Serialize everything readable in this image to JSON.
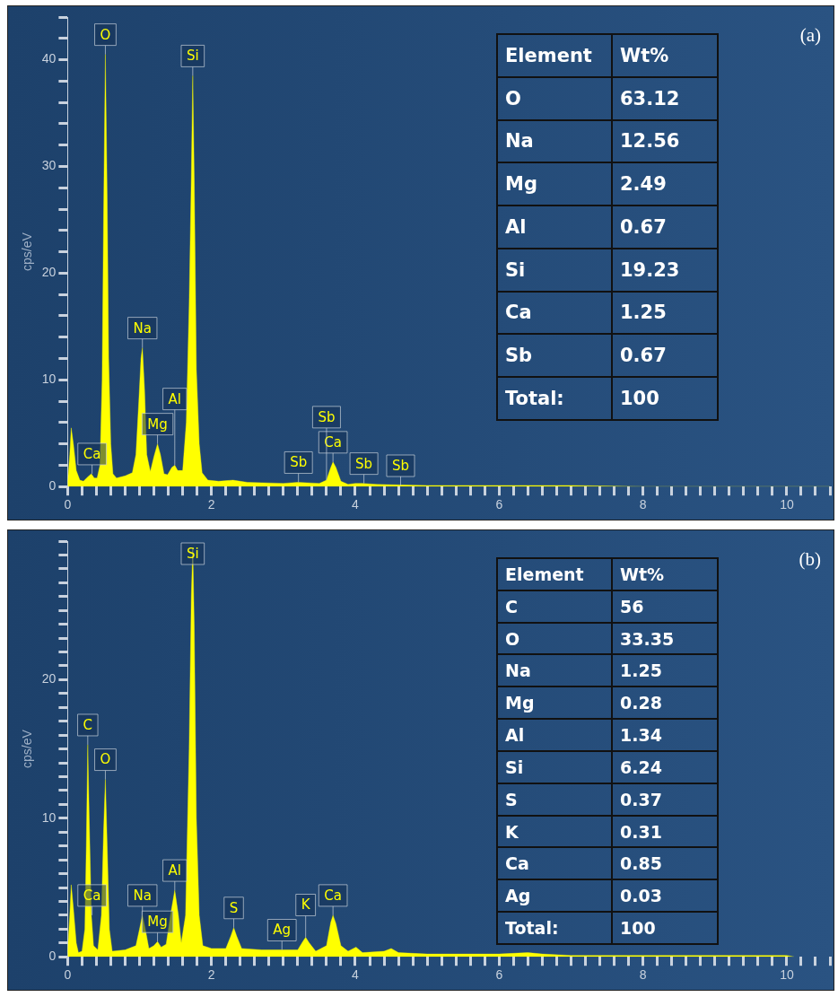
{
  "chart_data": [
    {
      "type": "area",
      "title": "(a)",
      "ylabel": "cps/eV",
      "color": "#ffff00",
      "marker": "none",
      "grid": false,
      "legend": false,
      "x": [
        0,
        0.03,
        0.05,
        0.08,
        0.12,
        0.17,
        0.22,
        0.28,
        0.33,
        0.37,
        0.41,
        0.45,
        0.48,
        0.5,
        0.525,
        0.55,
        0.57,
        0.6,
        0.63,
        0.68,
        0.8,
        0.9,
        0.95,
        0.99,
        1.02,
        1.04,
        1.07,
        1.1,
        1.15,
        1.2,
        1.25,
        1.29,
        1.34,
        1.39,
        1.45,
        1.49,
        1.53,
        1.6,
        1.65,
        1.69,
        1.72,
        1.74,
        1.76,
        1.79,
        1.83,
        1.87,
        1.95,
        2.1,
        2.3,
        2.5,
        3.0,
        3.2,
        3.5,
        3.6,
        3.66,
        3.69,
        3.73,
        3.8,
        3.9,
        4.0,
        4.1,
        4.3,
        5,
        6,
        7,
        8,
        9,
        10,
        10.6
      ],
      "values": [
        0.3,
        3,
        5.5,
        4,
        1.5,
        0.6,
        0.5,
        0.9,
        1.2,
        0.8,
        0.8,
        2,
        10,
        25,
        40.5,
        27,
        12,
        4,
        1.2,
        0.8,
        1,
        1.3,
        3,
        8,
        12,
        13,
        9,
        3,
        1.4,
        2.8,
        4,
        3,
        1.2,
        1.1,
        1.8,
        2,
        1.5,
        1.5,
        6,
        17,
        29,
        38.5,
        29,
        11,
        4,
        1.3,
        0.6,
        0.5,
        0.6,
        0.4,
        0.3,
        0.4,
        0.3,
        0.6,
        1.8,
        2.3,
        1.8,
        0.5,
        0.2,
        0.3,
        0.3,
        0.2,
        0.1,
        0.1,
        0.1,
        0,
        0,
        0,
        0
      ],
      "xlim": [
        0,
        10.6
      ],
      "ylim": [
        0,
        44
      ],
      "xticks": [
        0,
        {
          "value": 0.2,
          "label": null
        },
        {
          "value": 0.4,
          "label": null
        },
        {
          "value": 0.6,
          "label": null
        },
        {
          "value": 0.8,
          "label": null
        },
        {
          "value": 1,
          "label": null
        },
        {
          "value": 1.2,
          "label": null
        },
        {
          "value": 1.4,
          "label": null
        },
        {
          "value": 1.6,
          "label": null
        },
        {
          "value": 1.8,
          "label": null
        },
        2,
        {
          "value": 2.2,
          "label": null
        },
        {
          "value": 2.4,
          "label": null
        },
        {
          "value": 2.6,
          "label": null
        },
        {
          "value": 2.8,
          "label": null
        },
        {
          "value": 3,
          "label": null
        },
        {
          "value": 3.2,
          "label": null
        },
        {
          "value": 3.4,
          "label": null
        },
        {
          "value": 3.6,
          "label": null
        },
        {
          "value": 3.8,
          "label": null
        },
        4,
        {
          "value": 4.2,
          "label": null
        },
        {
          "value": 4.4,
          "label": null
        },
        {
          "value": 4.6,
          "label": null
        },
        {
          "value": 4.8,
          "label": null
        },
        {
          "value": 5,
          "label": null
        },
        {
          "value": 5.2,
          "label": null
        },
        {
          "value": 5.4,
          "label": null
        },
        {
          "value": 5.6,
          "label": null
        },
        {
          "value": 5.8,
          "label": null
        },
        6,
        {
          "value": 6.2,
          "label": null
        },
        {
          "value": 6.4,
          "label": null
        },
        {
          "value": 6.6,
          "label": null
        },
        {
          "value": 6.8,
          "label": null
        },
        {
          "value": 7,
          "label": null
        },
        {
          "value": 7.2,
          "label": null
        },
        {
          "value": 7.4,
          "label": null
        },
        {
          "value": 7.6,
          "label": null
        },
        {
          "value": 7.8,
          "label": null
        },
        8,
        {
          "value": 8.2,
          "label": null
        },
        {
          "value": 8.4,
          "label": null
        },
        {
          "value": 8.6,
          "label": null
        },
        {
          "value": 8.8,
          "label": null
        },
        {
          "value": 9,
          "label": null
        },
        {
          "value": 9.2,
          "label": null
        },
        {
          "value": 9.4,
          "label": null
        },
        {
          "value": 9.6,
          "label": null
        },
        {
          "value": 9.8,
          "label": null
        },
        10,
        {
          "value": 10.2,
          "label": null
        },
        {
          "value": 10.4,
          "label": null
        },
        {
          "value": 10.6,
          "label": null
        }
      ],
      "yticks": [
        0,
        {
          "value": 2,
          "label": null
        },
        {
          "value": 4,
          "label": null
        },
        {
          "value": 6,
          "label": null
        },
        {
          "value": 8,
          "label": null
        },
        10,
        {
          "value": 12,
          "label": null
        },
        {
          "value": 14,
          "label": null
        },
        {
          "value": 16,
          "label": null
        },
        {
          "value": 18,
          "label": null
        },
        20,
        {
          "value": 22,
          "label": null
        },
        {
          "value": 24,
          "label": null
        },
        {
          "value": 26,
          "label": null
        },
        {
          "value": 28,
          "label": null
        },
        30,
        {
          "value": 32,
          "label": null
        },
        {
          "value": 34,
          "label": null
        },
        {
          "value": 36,
          "label": null
        },
        {
          "value": 38,
          "label": null
        },
        40,
        {
          "value": 42,
          "label": null
        },
        {
          "value": 44,
          "label": null
        }
      ],
      "annotations": [
        "Element",
        "Wt%",
        "O",
        "63.12",
        "Na",
        "12.56",
        "Mg",
        "2.49",
        "Al",
        "0.67",
        "Si",
        "19.23",
        "Ca",
        "1.25",
        "Sb",
        "0.67",
        "Total:",
        "100",
        {
          "text": "Ca",
          "x": 0.34,
          "y": 1.2
        },
        {
          "text": "O",
          "x": 0.525,
          "y": 40.5
        },
        {
          "text": "Si",
          "x": 1.74,
          "y": 38.5
        },
        {
          "text": "Na",
          "x": 1.04,
          "y": 13
        },
        {
          "text": "Mg",
          "x": 1.25,
          "y": 4
        },
        {
          "text": "Al",
          "x": 1.49,
          "y": 2
        },
        {
          "text": "Sb",
          "x": 3.21,
          "y": 0.4
        },
        {
          "text": "Ca",
          "x": 3.69,
          "y": 2.3
        },
        {
          "text": "Sb",
          "x": 3.6,
          "y": 0.6
        },
        {
          "text": "Sb",
          "x": 4.12,
          "y": 0.3
        },
        {
          "text": "Sb",
          "x": 4.63,
          "y": 0.1
        }
      ]
    },
    {
      "type": "area",
      "title": "(b)",
      "ylabel": "cps/eV",
      "color": "#ffff00",
      "marker": "none",
      "grid": false,
      "legend": false,
      "x": [
        0,
        0.03,
        0.05,
        0.08,
        0.12,
        0.15,
        0.2,
        0.24,
        0.26,
        0.28,
        0.3,
        0.33,
        0.36,
        0.42,
        0.47,
        0.5,
        0.525,
        0.55,
        0.58,
        0.62,
        0.8,
        0.95,
        1.0,
        1.04,
        1.08,
        1.13,
        1.2,
        1.25,
        1.3,
        1.37,
        1.43,
        1.49,
        1.54,
        1.58,
        1.64,
        1.69,
        1.72,
        1.74,
        1.76,
        1.79,
        1.83,
        1.88,
        2.0,
        2.2,
        2.27,
        2.31,
        2.35,
        2.42,
        2.7,
        2.98,
        3.2,
        3.27,
        3.31,
        3.36,
        3.45,
        3.6,
        3.66,
        3.69,
        3.73,
        3.8,
        3.9,
        4.01,
        4.1,
        4.4,
        4.5,
        4.6,
        5.0,
        6.0,
        6.4,
        6.6,
        7,
        8,
        9,
        10,
        10.1
      ],
      "values": [
        0.3,
        3,
        5.2,
        3.5,
        1,
        0.3,
        0.4,
        2,
        8,
        15.3,
        10,
        3,
        0.8,
        0.5,
        3,
        9,
        12.8,
        8,
        2,
        0.4,
        0.5,
        0.8,
        2,
        3,
        2,
        0.6,
        0.8,
        1.1,
        0.7,
        0.9,
        3,
        4.8,
        3,
        1,
        3,
        15,
        26,
        29.5,
        24,
        10,
        3,
        0.8,
        0.6,
        0.6,
        1.5,
        2.1,
        1.5,
        0.6,
        0.5,
        0.5,
        0.5,
        1.1,
        1.4,
        1,
        0.4,
        0.8,
        2.5,
        3,
        2.4,
        0.8,
        0.4,
        0.7,
        0.3,
        0.4,
        0.6,
        0.3,
        0.2,
        0.2,
        0.3,
        0.2,
        0.1,
        0.1,
        0.1,
        0.1,
        0
      ],
      "xlim": [
        0,
        10.6
      ],
      "ylim": [
        0,
        30
      ],
      "xticks": [
        0,
        {
          "value": 0.2,
          "label": null
        },
        {
          "value": 0.4,
          "label": null
        },
        {
          "value": 0.6,
          "label": null
        },
        {
          "value": 0.8,
          "label": null
        },
        {
          "value": 1,
          "label": null
        },
        {
          "value": 1.2,
          "label": null
        },
        {
          "value": 1.4,
          "label": null
        },
        {
          "value": 1.6,
          "label": null
        },
        {
          "value": 1.8,
          "label": null
        },
        2,
        {
          "value": 2.2,
          "label": null
        },
        {
          "value": 2.4,
          "label": null
        },
        {
          "value": 2.6,
          "label": null
        },
        {
          "value": 2.8,
          "label": null
        },
        {
          "value": 3,
          "label": null
        },
        {
          "value": 3.2,
          "label": null
        },
        {
          "value": 3.4,
          "label": null
        },
        {
          "value": 3.6,
          "label": null
        },
        {
          "value": 3.8,
          "label": null
        },
        4,
        {
          "value": 4.2,
          "label": null
        },
        {
          "value": 4.4,
          "label": null
        },
        {
          "value": 4.6,
          "label": null
        },
        {
          "value": 4.8,
          "label": null
        },
        {
          "value": 5,
          "label": null
        },
        {
          "value": 5.2,
          "label": null
        },
        {
          "value": 5.4,
          "label": null
        },
        {
          "value": 5.6,
          "label": null
        },
        {
          "value": 5.8,
          "label": null
        },
        6,
        {
          "value": 6.2,
          "label": null
        },
        {
          "value": 6.4,
          "label": null
        },
        {
          "value": 6.6,
          "label": null
        },
        {
          "value": 6.8,
          "label": null
        },
        {
          "value": 7,
          "label": null
        },
        {
          "value": 7.2,
          "label": null
        },
        {
          "value": 7.4,
          "label": null
        },
        {
          "value": 7.6,
          "label": null
        },
        {
          "value": 7.8,
          "label": null
        },
        8,
        {
          "value": 8.2,
          "label": null
        },
        {
          "value": 8.4,
          "label": null
        },
        {
          "value": 8.6,
          "label": null
        },
        {
          "value": 8.8,
          "label": null
        },
        {
          "value": 9,
          "label": null
        },
        {
          "value": 9.2,
          "label": null
        },
        {
          "value": 9.4,
          "label": null
        },
        {
          "value": 9.6,
          "label": null
        },
        {
          "value": 9.8,
          "label": null
        },
        10,
        {
          "value": 10.2,
          "label": null
        },
        {
          "value": 10.4,
          "label": null
        },
        {
          "value": 10.6,
          "label": null
        }
      ],
      "yticks": [
        0,
        {
          "value": 1,
          "label": null
        },
        {
          "value": 2,
          "label": null
        },
        {
          "value": 3,
          "label": null
        },
        {
          "value": 4,
          "label": null
        },
        {
          "value": 5,
          "label": null
        },
        {
          "value": 6,
          "label": null
        },
        {
          "value": 7,
          "label": null
        },
        {
          "value": 8,
          "label": null
        },
        {
          "value": 9,
          "label": null
        },
        10,
        {
          "value": 11,
          "label": null
        },
        {
          "value": 12,
          "label": null
        },
        {
          "value": 13,
          "label": null
        },
        {
          "value": 14,
          "label": null
        },
        {
          "value": 15,
          "label": null
        },
        {
          "value": 16,
          "label": null
        },
        {
          "value": 17,
          "label": null
        },
        {
          "value": 18,
          "label": null
        },
        {
          "value": 19,
          "label": null
        },
        20,
        {
          "value": 21,
          "label": null
        },
        {
          "value": 22,
          "label": null
        },
        {
          "value": 23,
          "label": null
        },
        {
          "value": 24,
          "label": null
        },
        {
          "value": 25,
          "label": null
        },
        {
          "value": 26,
          "label": null
        },
        {
          "value": 27,
          "label": null
        },
        {
          "value": 28,
          "label": null
        },
        {
          "value": 29,
          "label": null
        },
        {
          "value": 30,
          "label": null
        }
      ],
      "annotations": [
        "Element",
        "Wt%",
        "C",
        "56",
        "O",
        "33.35",
        "Na",
        "1.25",
        "Mg",
        "0.28",
        "Al",
        "1.34",
        "Si",
        "6.24",
        "S",
        "0.37",
        "K",
        "0.31",
        "Ca",
        "0.85",
        "Ag",
        "0.03",
        "Total:",
        "100",
        {
          "text": "Si",
          "x": 1.74,
          "y": 29.5
        },
        {
          "text": "C",
          "x": 0.28,
          "y": 15.3
        },
        {
          "text": "O",
          "x": 0.525,
          "y": 12.8
        },
        {
          "text": "Ca",
          "x": 0.34,
          "y": 3
        },
        {
          "text": "Na",
          "x": 1.04,
          "y": 3
        },
        {
          "text": "Al",
          "x": 1.49,
          "y": 4.8
        },
        {
          "text": "Mg",
          "x": 1.25,
          "y": 1.1
        },
        {
          "text": "S",
          "x": 2.31,
          "y": 2.1
        },
        {
          "text": "Ag",
          "x": 2.98,
          "y": 0.5
        },
        {
          "text": "K",
          "x": 3.31,
          "y": 1.4
        },
        {
          "text": "Ca",
          "x": 3.69,
          "y": 3
        }
      ]
    }
  ]
}
